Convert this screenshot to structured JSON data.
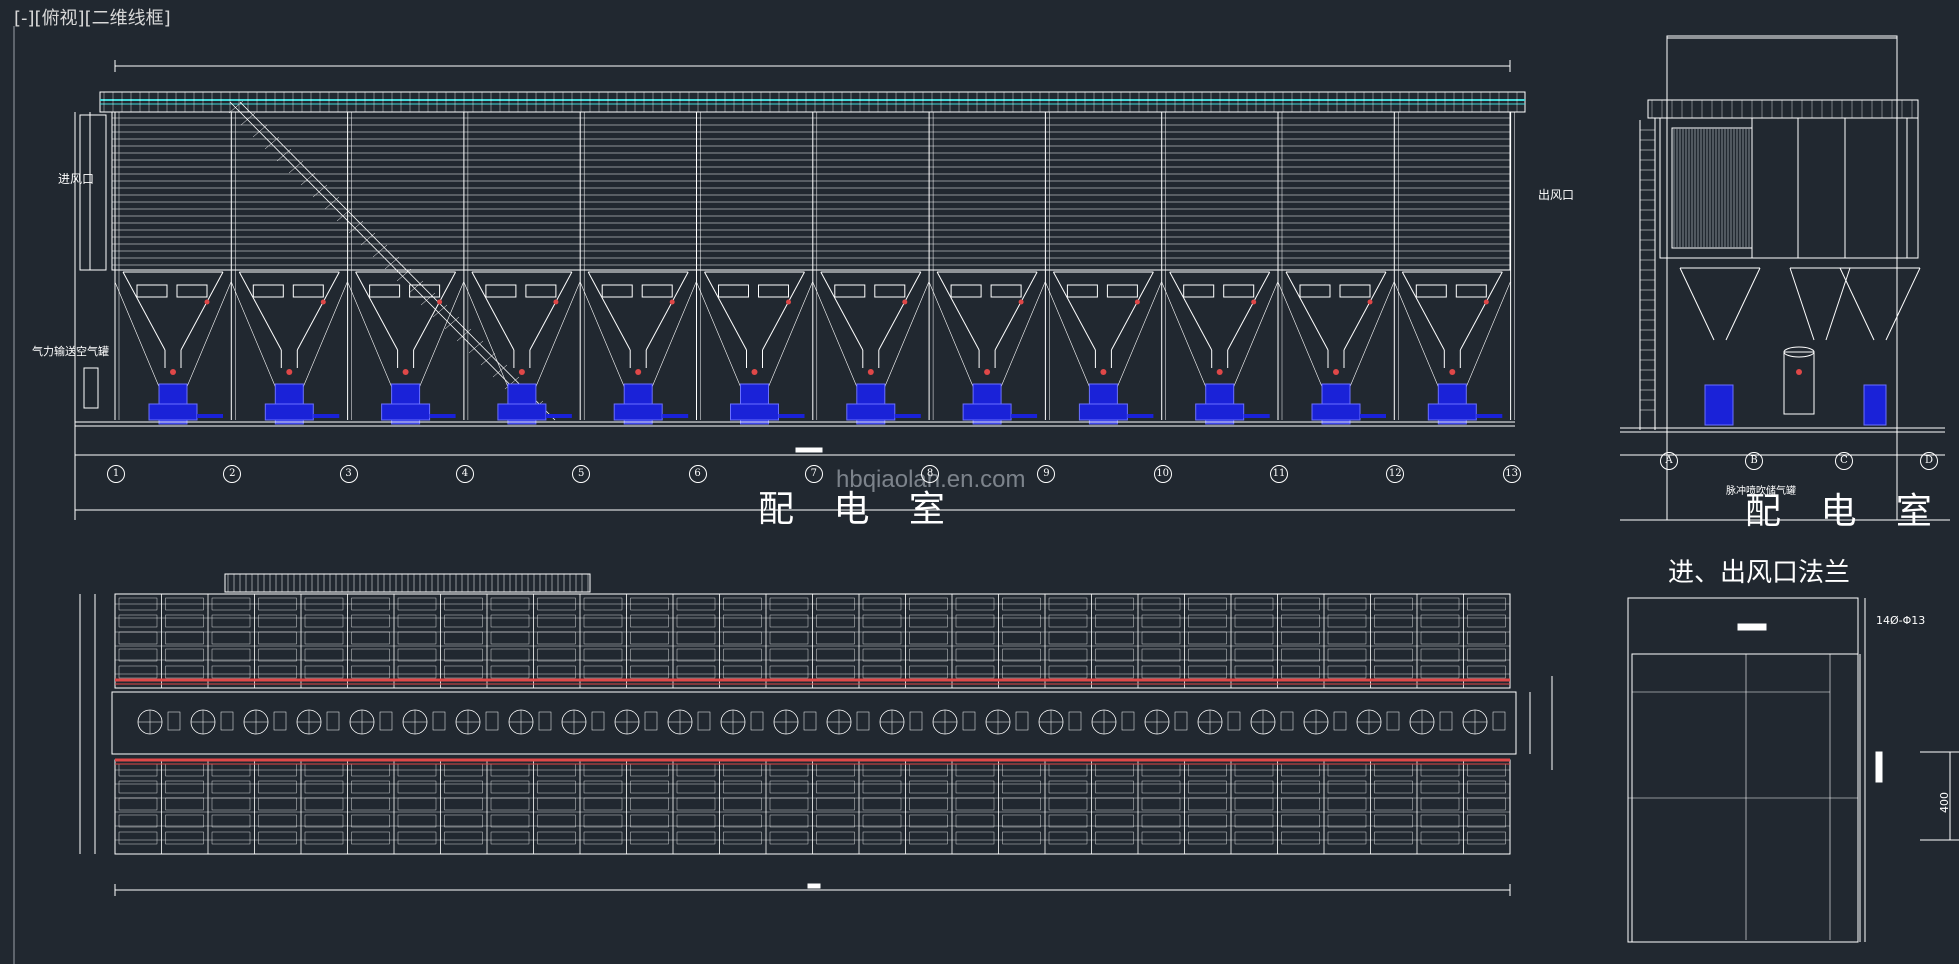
{
  "viewport": {
    "label": "[-][俯视][二维线框]"
  },
  "front_elevation": {
    "inlet_label": "进风口",
    "outlet_label": "出风口",
    "conveyor_label": "气力输送空气罐",
    "room_label": "配 电 室",
    "axis_numbers": [
      "1",
      "2",
      "3",
      "4",
      "5",
      "6",
      "7",
      "8",
      "9",
      "10",
      "11",
      "12",
      "13"
    ]
  },
  "side_elevation": {
    "room_label": "配 电 室",
    "tank_label": "脉冲喷吹储气罐",
    "axis_letters": [
      "A",
      "B",
      "C",
      "D"
    ]
  },
  "flange_detail": {
    "title": "进、出风口法兰",
    "hole_note": "14Ø-Φ13",
    "dimension": "400"
  },
  "watermark": "hbqiaolan.en.com",
  "colors": {
    "background": "#212830",
    "line": "#ffffff",
    "cyan": "#44d8d8",
    "blue": "#1a22d8",
    "red": "#e04848",
    "gray": "#9aa0a8"
  }
}
